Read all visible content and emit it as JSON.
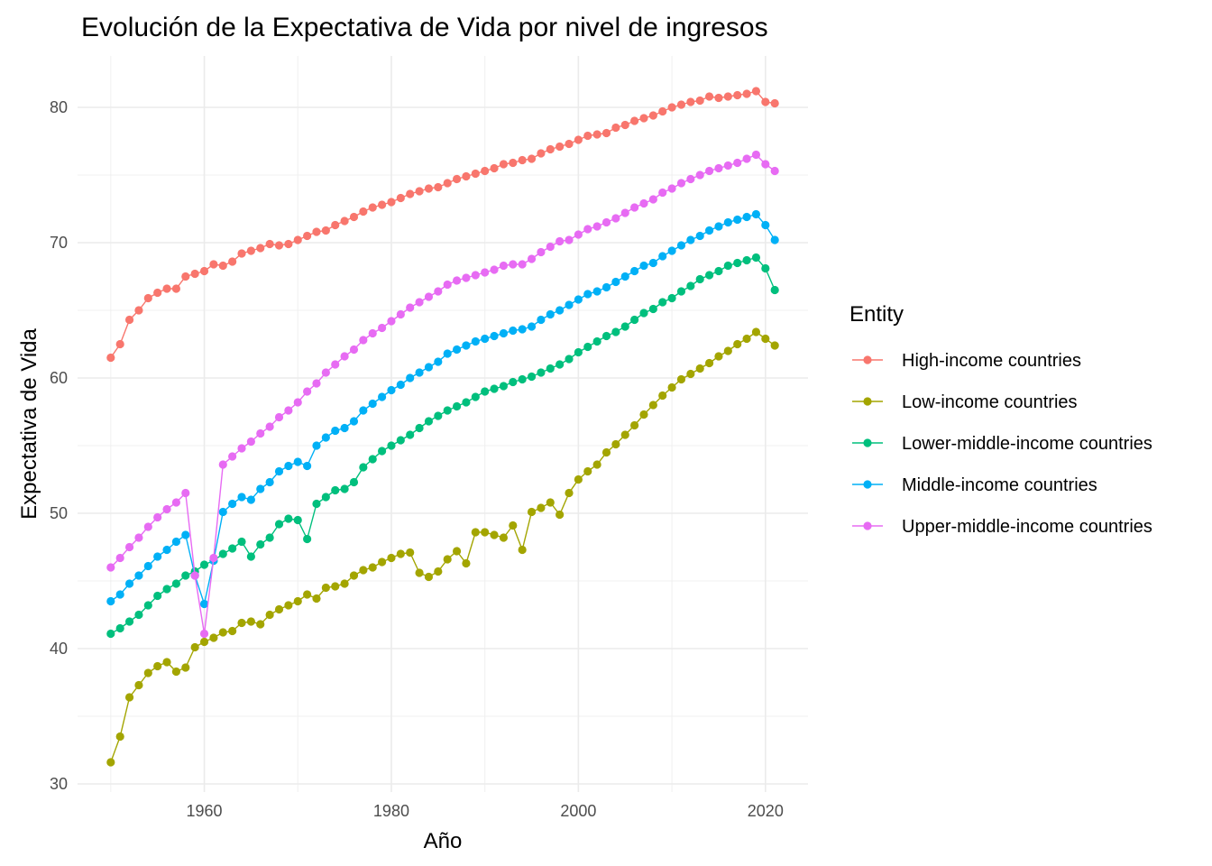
{
  "chart_data": {
    "type": "line",
    "title": "Evolución de la Expectativa de Vida por nivel de ingresos",
    "xlabel": "Año",
    "ylabel": "Expectativa de Vida",
    "xlim": [
      1946.45,
      2024.55
    ],
    "ylim": [
      29.4,
      83.8
    ],
    "x_ticks": [
      1960,
      1980,
      2000,
      2020
    ],
    "y_ticks": [
      30,
      40,
      50,
      60,
      70,
      80
    ],
    "grid": true,
    "legend": {
      "title": "Entity",
      "position": "right"
    },
    "x": [
      1950,
      1951,
      1952,
      1953,
      1954,
      1955,
      1956,
      1957,
      1958,
      1959,
      1960,
      1961,
      1962,
      1963,
      1964,
      1965,
      1966,
      1967,
      1968,
      1969,
      1970,
      1971,
      1972,
      1973,
      1974,
      1975,
      1976,
      1977,
      1978,
      1979,
      1980,
      1981,
      1982,
      1983,
      1984,
      1985,
      1986,
      1987,
      1988,
      1989,
      1990,
      1991,
      1992,
      1993,
      1994,
      1995,
      1996,
      1997,
      1998,
      1999,
      2000,
      2001,
      2002,
      2003,
      2004,
      2005,
      2006,
      2007,
      2008,
      2009,
      2010,
      2011,
      2012,
      2013,
      2014,
      2015,
      2016,
      2017,
      2018,
      2019,
      2020,
      2021
    ],
    "series": [
      {
        "name": "High-income countries",
        "color": "#F8766D",
        "values": [
          61.5,
          62.5,
          64.3,
          65.0,
          65.9,
          66.3,
          66.6,
          66.6,
          67.5,
          67.7,
          67.9,
          68.4,
          68.3,
          68.6,
          69.2,
          69.4,
          69.6,
          69.9,
          69.8,
          69.9,
          70.2,
          70.5,
          70.8,
          70.9,
          71.3,
          71.6,
          71.9,
          72.3,
          72.6,
          72.8,
          73.0,
          73.3,
          73.6,
          73.8,
          74.0,
          74.1,
          74.4,
          74.7,
          74.9,
          75.1,
          75.3,
          75.5,
          75.8,
          75.9,
          76.1,
          76.2,
          76.6,
          76.9,
          77.1,
          77.3,
          77.6,
          77.9,
          78.0,
          78.1,
          78.5,
          78.7,
          79.0,
          79.2,
          79.4,
          79.7,
          80.0,
          80.2,
          80.4,
          80.5,
          80.8,
          80.7,
          80.8,
          80.9,
          81.0,
          81.2,
          80.4,
          80.3
        ]
      },
      {
        "name": "Low-income countries",
        "color": "#A3A500",
        "values": [
          31.6,
          33.5,
          36.4,
          37.3,
          38.2,
          38.7,
          39.0,
          38.3,
          38.6,
          40.1,
          40.5,
          40.8,
          41.2,
          41.3,
          41.9,
          42.0,
          41.8,
          42.5,
          42.9,
          43.2,
          43.5,
          44.0,
          43.7,
          44.5,
          44.6,
          44.8,
          45.4,
          45.8,
          46.0,
          46.4,
          46.7,
          47.0,
          47.1,
          45.6,
          45.3,
          45.7,
          46.6,
          47.2,
          46.3,
          48.6,
          48.6,
          48.4,
          48.2,
          49.1,
          47.3,
          50.1,
          50.4,
          50.8,
          49.9,
          51.5,
          52.5,
          53.1,
          53.6,
          54.5,
          55.1,
          55.8,
          56.5,
          57.3,
          58.0,
          58.7,
          59.3,
          59.9,
          60.3,
          60.7,
          61.1,
          61.6,
          62.0,
          62.5,
          62.9,
          63.4,
          62.9,
          62.4
        ]
      },
      {
        "name": "Lower-middle-income countries",
        "color": "#00BF7D",
        "values": [
          41.1,
          41.5,
          42.0,
          42.5,
          43.2,
          43.9,
          44.4,
          44.8,
          45.4,
          45.7,
          46.2,
          46.5,
          47.0,
          47.4,
          47.9,
          46.8,
          47.7,
          48.2,
          49.2,
          49.6,
          49.5,
          48.1,
          50.7,
          51.2,
          51.7,
          51.8,
          52.3,
          53.4,
          54.0,
          54.6,
          55.0,
          55.4,
          55.8,
          56.3,
          56.8,
          57.2,
          57.6,
          57.9,
          58.2,
          58.6,
          59.0,
          59.2,
          59.4,
          59.7,
          59.9,
          60.1,
          60.4,
          60.7,
          61.0,
          61.4,
          61.9,
          62.3,
          62.7,
          63.1,
          63.4,
          63.8,
          64.3,
          64.8,
          65.1,
          65.6,
          65.9,
          66.4,
          66.8,
          67.3,
          67.6,
          67.9,
          68.3,
          68.5,
          68.7,
          68.9,
          68.1,
          66.5
        ]
      },
      {
        "name": "Middle-income countries",
        "color": "#00B0F6",
        "values": [
          43.5,
          44.0,
          44.8,
          45.4,
          46.1,
          46.8,
          47.3,
          47.9,
          48.4,
          45.4,
          43.3,
          46.5,
          50.1,
          50.7,
          51.2,
          51.0,
          51.8,
          52.3,
          53.1,
          53.5,
          53.8,
          53.5,
          55.0,
          55.6,
          56.1,
          56.3,
          56.8,
          57.6,
          58.1,
          58.6,
          59.1,
          59.5,
          60.0,
          60.4,
          60.8,
          61.2,
          61.8,
          62.1,
          62.4,
          62.7,
          62.9,
          63.1,
          63.3,
          63.5,
          63.6,
          63.8,
          64.3,
          64.7,
          65.0,
          65.4,
          65.8,
          66.2,
          66.4,
          66.7,
          67.1,
          67.5,
          67.9,
          68.3,
          68.5,
          69.0,
          69.4,
          69.8,
          70.2,
          70.5,
          70.9,
          71.2,
          71.5,
          71.7,
          71.9,
          72.1,
          71.3,
          70.2
        ]
      },
      {
        "name": "Upper-middle-income countries",
        "color": "#E76BF3",
        "values": [
          46.0,
          46.7,
          47.5,
          48.2,
          49.0,
          49.7,
          50.3,
          50.8,
          51.5,
          45.4,
          41.1,
          46.7,
          53.6,
          54.2,
          54.8,
          55.3,
          55.9,
          56.4,
          57.1,
          57.6,
          58.2,
          59.0,
          59.6,
          60.4,
          61.0,
          61.6,
          62.1,
          62.8,
          63.3,
          63.7,
          64.2,
          64.7,
          65.2,
          65.6,
          66.0,
          66.4,
          66.9,
          67.2,
          67.4,
          67.6,
          67.8,
          68.0,
          68.3,
          68.4,
          68.4,
          68.8,
          69.3,
          69.7,
          70.1,
          70.2,
          70.6,
          71.0,
          71.2,
          71.5,
          71.8,
          72.2,
          72.6,
          72.9,
          73.2,
          73.7,
          74.0,
          74.4,
          74.7,
          75.0,
          75.3,
          75.5,
          75.7,
          75.9,
          76.2,
          76.5,
          75.8,
          75.3
        ]
      }
    ]
  }
}
